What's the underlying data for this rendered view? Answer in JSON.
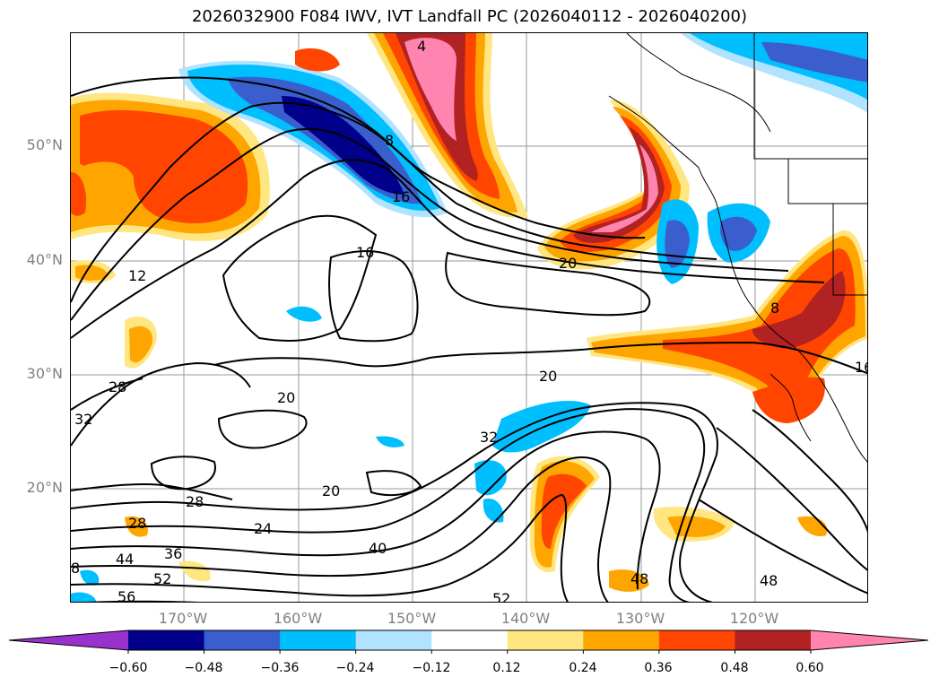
{
  "title": "2026032900 F084 IWV, IVT Landfall PC (2026040112 - 2026040200)",
  "lat_labels": [
    "50°N",
    "40°N",
    "30°N",
    "20°N"
  ],
  "lon_labels": [
    "170°W",
    "160°W",
    "150°W",
    "140°W",
    "130°W",
    "120°W"
  ],
  "contour_labels": [
    "4",
    "8",
    "16",
    "16",
    "12",
    "20",
    "20",
    "20",
    "28",
    "32",
    "28",
    "24",
    "28",
    "36",
    "44",
    "52",
    "56",
    "8",
    "40",
    "32",
    "20",
    "52",
    "48",
    "48",
    "16",
    "8"
  ],
  "colorbar": {
    "ticks": [
      "−0.60",
      "−0.48",
      "−0.36",
      "−0.24",
      "−0.12",
      "0.12",
      "0.24",
      "0.36",
      "0.48",
      "0.60"
    ],
    "colors": [
      "#9932cc",
      "#00008b",
      "#3a5fcd",
      "#00bfff",
      "#afe3ff",
      "#ffffff",
      "#ffe680",
      "#ffa500",
      "#ff4500",
      "#b22222",
      "#ff85b0"
    ]
  }
}
